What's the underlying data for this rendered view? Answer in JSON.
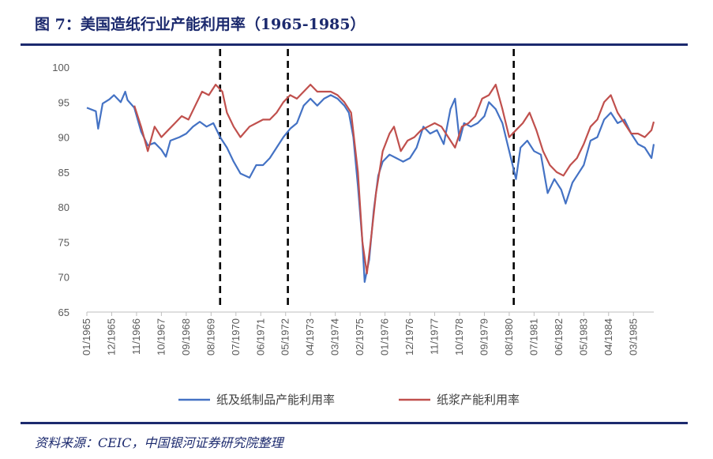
{
  "header": {
    "title": "图 7：美国造纸行业产能利用率（1965-1985）"
  },
  "footer": {
    "source": "资料来源：CEIC，中国银河证券研究院整理"
  },
  "colors": {
    "series_1": "#4472c4",
    "series_2": "#c0504d",
    "title": "#1c2a6e"
  },
  "chart_data": {
    "type": "line",
    "title": "美国造纸行业产能利用率（1965-1985）",
    "ylim": [
      65,
      100
    ],
    "yticks": [
      65,
      70,
      75,
      80,
      85,
      90,
      95,
      100
    ],
    "x_start": "1965-01",
    "x_end": "1985-12",
    "x_tick_labels": [
      "01/1965",
      "12/1965",
      "11/1966",
      "10/1967",
      "09/1968",
      "08/1969",
      "07/1970",
      "06/1971",
      "05/1972",
      "04/1973",
      "03/1974",
      "02/1975",
      "01/1976",
      "12/1976",
      "11/1977",
      "10/1978",
      "09/1979",
      "08/1980",
      "07/1981",
      "06/1982",
      "05/1983",
      "04/1984",
      "03/1985"
    ],
    "vertical_markers": [
      "1969-12",
      "1972-06",
      "1980-10"
    ],
    "legend_position": "bottom",
    "series": [
      {
        "name": "纸及纸制品产能利用率",
        "points": [
          [
            "1965-01",
            94.2
          ],
          [
            "1965-05",
            93.7
          ],
          [
            "1965-06",
            91.2
          ],
          [
            "1965-08",
            94.8
          ],
          [
            "1965-11",
            95.4
          ],
          [
            "1966-01",
            96.0
          ],
          [
            "1966-04",
            95.0
          ],
          [
            "1966-06",
            96.5
          ],
          [
            "1966-07",
            95.3
          ],
          [
            "1966-10",
            94.2
          ],
          [
            "1967-01",
            90.8
          ],
          [
            "1967-04",
            88.8
          ],
          [
            "1967-07",
            89.2
          ],
          [
            "1967-10",
            88.2
          ],
          [
            "1967-12",
            87.2
          ],
          [
            "1968-02",
            89.5
          ],
          [
            "1968-06",
            90.0
          ],
          [
            "1968-09",
            90.5
          ],
          [
            "1968-12",
            91.5
          ],
          [
            "1969-03",
            92.2
          ],
          [
            "1969-06",
            91.5
          ],
          [
            "1969-09",
            92.0
          ],
          [
            "1969-12",
            90.0
          ],
          [
            "1970-03",
            88.5
          ],
          [
            "1970-06",
            86.5
          ],
          [
            "1970-09",
            84.8
          ],
          [
            "1971-01",
            84.2
          ],
          [
            "1971-04",
            86.0
          ],
          [
            "1971-07",
            86.0
          ],
          [
            "1971-10",
            87.0
          ],
          [
            "1972-01",
            88.5
          ],
          [
            "1972-04",
            90.0
          ],
          [
            "1972-07",
            91.2
          ],
          [
            "1972-10",
            92.0
          ],
          [
            "1973-01",
            94.5
          ],
          [
            "1973-04",
            95.5
          ],
          [
            "1973-07",
            94.5
          ],
          [
            "1973-10",
            95.5
          ],
          [
            "1974-01",
            96.0
          ],
          [
            "1974-04",
            95.5
          ],
          [
            "1974-07",
            94.5
          ],
          [
            "1974-09",
            93.5
          ],
          [
            "1974-11",
            90.0
          ],
          [
            "1975-01",
            83.0
          ],
          [
            "1975-03",
            75.0
          ],
          [
            "1975-04",
            69.3
          ],
          [
            "1975-06",
            72.5
          ],
          [
            "1975-08",
            79.5
          ],
          [
            "1975-10",
            84.5
          ],
          [
            "1975-12",
            86.5
          ],
          [
            "1976-03",
            87.5
          ],
          [
            "1976-06",
            87.0
          ],
          [
            "1976-09",
            86.5
          ],
          [
            "1976-12",
            87.0
          ],
          [
            "1977-03",
            88.5
          ],
          [
            "1977-06",
            91.5
          ],
          [
            "1977-09",
            90.5
          ],
          [
            "1977-12",
            91.0
          ],
          [
            "1978-03",
            89.0
          ],
          [
            "1978-06",
            94.0
          ],
          [
            "1978-08",
            95.5
          ],
          [
            "1978-10",
            89.5
          ],
          [
            "1978-12",
            92.0
          ],
          [
            "1979-03",
            91.5
          ],
          [
            "1979-06",
            92.0
          ],
          [
            "1979-09",
            93.0
          ],
          [
            "1979-11",
            95.0
          ],
          [
            "1980-02",
            94.0
          ],
          [
            "1980-05",
            92.0
          ],
          [
            "1980-08",
            88.0
          ],
          [
            "1980-11",
            84.0
          ],
          [
            "1981-01",
            88.5
          ],
          [
            "1981-04",
            89.5
          ],
          [
            "1981-07",
            88.0
          ],
          [
            "1981-10",
            87.5
          ],
          [
            "1982-01",
            82.0
          ],
          [
            "1982-04",
            84.0
          ],
          [
            "1982-07",
            82.5
          ],
          [
            "1982-09",
            80.5
          ],
          [
            "1982-12",
            83.5
          ],
          [
            "1983-02",
            84.5
          ],
          [
            "1983-05",
            86.0
          ],
          [
            "1983-08",
            89.5
          ],
          [
            "1983-11",
            90.0
          ],
          [
            "1984-02",
            92.5
          ],
          [
            "1984-05",
            93.5
          ],
          [
            "1984-08",
            92.0
          ],
          [
            "1984-11",
            92.5
          ],
          [
            "1985-02",
            90.5
          ],
          [
            "1985-05",
            89.0
          ],
          [
            "1985-08",
            88.5
          ],
          [
            "1985-11",
            87.0
          ],
          [
            "1985-12",
            89.0
          ]
        ]
      },
      {
        "name": "纸浆产能利用率",
        "points": [
          [
            "1966-10",
            94.5
          ],
          [
            "1967-01",
            91.5
          ],
          [
            "1967-04",
            88.0
          ],
          [
            "1967-07",
            91.5
          ],
          [
            "1967-10",
            90.0
          ],
          [
            "1968-01",
            91.0
          ],
          [
            "1968-04",
            92.0
          ],
          [
            "1968-07",
            93.0
          ],
          [
            "1968-10",
            92.5
          ],
          [
            "1969-01",
            94.5
          ],
          [
            "1969-04",
            96.5
          ],
          [
            "1969-07",
            96.0
          ],
          [
            "1969-10",
            97.5
          ],
          [
            "1970-01",
            96.5
          ],
          [
            "1970-03",
            93.5
          ],
          [
            "1970-06",
            91.5
          ],
          [
            "1970-09",
            90.0
          ],
          [
            "1971-01",
            91.5
          ],
          [
            "1971-04",
            92.0
          ],
          [
            "1971-07",
            92.5
          ],
          [
            "1971-10",
            92.5
          ],
          [
            "1972-01",
            93.5
          ],
          [
            "1972-04",
            95.0
          ],
          [
            "1972-07",
            96.0
          ],
          [
            "1972-10",
            95.5
          ],
          [
            "1973-01",
            96.5
          ],
          [
            "1973-04",
            97.5
          ],
          [
            "1973-07",
            96.5
          ],
          [
            "1973-10",
            96.5
          ],
          [
            "1974-01",
            96.5
          ],
          [
            "1974-04",
            96.0
          ],
          [
            "1974-07",
            95.0
          ],
          [
            "1974-10",
            93.5
          ],
          [
            "1975-01",
            85.0
          ],
          [
            "1975-03",
            75.0
          ],
          [
            "1975-05",
            70.5
          ],
          [
            "1975-07",
            76.0
          ],
          [
            "1975-09",
            82.0
          ],
          [
            "1975-12",
            88.0
          ],
          [
            "1976-03",
            90.5
          ],
          [
            "1976-05",
            91.5
          ],
          [
            "1976-08",
            88.0
          ],
          [
            "1976-11",
            89.5
          ],
          [
            "1977-02",
            90.0
          ],
          [
            "1977-05",
            91.0
          ],
          [
            "1977-08",
            91.5
          ],
          [
            "1977-11",
            92.0
          ],
          [
            "1978-02",
            91.5
          ],
          [
            "1978-05",
            90.0
          ],
          [
            "1978-08",
            88.5
          ],
          [
            "1978-11",
            91.5
          ],
          [
            "1979-02",
            92.0
          ],
          [
            "1979-05",
            93.0
          ],
          [
            "1979-08",
            95.5
          ],
          [
            "1979-11",
            96.0
          ],
          [
            "1980-02",
            97.5
          ],
          [
            "1980-05",
            94.0
          ],
          [
            "1980-08",
            90.0
          ],
          [
            "1980-11",
            91.0
          ],
          [
            "1981-02",
            92.0
          ],
          [
            "1981-05",
            93.5
          ],
          [
            "1981-08",
            91.0
          ],
          [
            "1981-11",
            88.0
          ],
          [
            "1982-02",
            86.0
          ],
          [
            "1982-05",
            85.0
          ],
          [
            "1982-08",
            84.5
          ],
          [
            "1982-11",
            86.0
          ],
          [
            "1983-02",
            87.0
          ],
          [
            "1983-05",
            89.0
          ],
          [
            "1983-08",
            91.5
          ],
          [
            "1983-11",
            92.5
          ],
          [
            "1984-02",
            95.0
          ],
          [
            "1984-05",
            96.0
          ],
          [
            "1984-08",
            93.5
          ],
          [
            "1984-11",
            92.0
          ],
          [
            "1985-02",
            90.5
          ],
          [
            "1985-05",
            90.5
          ],
          [
            "1985-08",
            90.0
          ],
          [
            "1985-11",
            91.0
          ],
          [
            "1985-12",
            92.2
          ]
        ]
      }
    ]
  }
}
